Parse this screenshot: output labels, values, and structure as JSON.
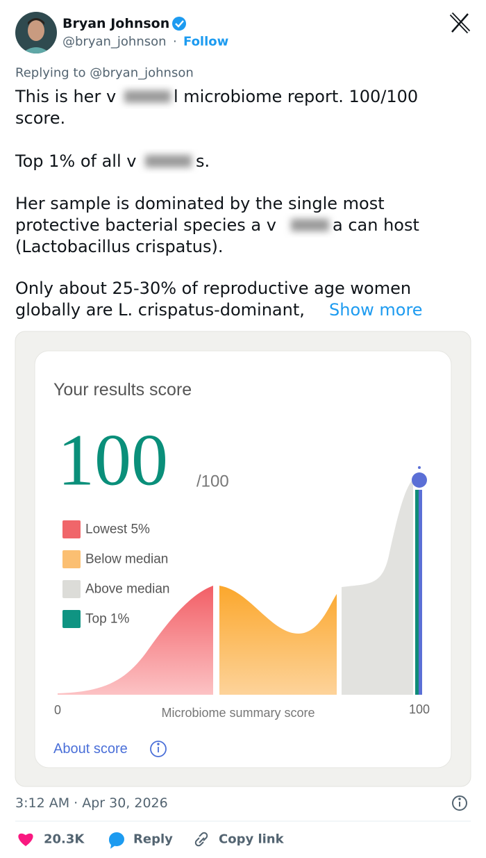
{
  "author": {
    "name": "Bryan Johnson",
    "handle": "@bryan_johnson",
    "follow": "Follow"
  },
  "reply_to": "Replying to @bryan_johnson",
  "body": {
    "lines": [
      [
        "This is her v",
        "l microbiome report. 100/100"
      ],
      [
        "score."
      ],
      [
        "Top 1% of all v",
        "s."
      ],
      [
        "Her sample is dominated by the single most"
      ],
      [
        "protective bacterial species a v",
        "a can host"
      ],
      [
        "(Lactobacillus crispatus)."
      ],
      [
        "Only about 25-30% of reproductive age women"
      ],
      [
        "globally are L. crispatus-dominant,"
      ]
    ],
    "show_more": "Show more"
  },
  "card": {
    "title": "Your results score",
    "score": "100",
    "out_of": "/100",
    "legend": [
      "Lowest 5%",
      "Below median",
      "Above median",
      "Top 1%"
    ],
    "axis": {
      "min": "0",
      "label": "Microbiome summary score",
      "max": "100"
    },
    "about": "About score"
  },
  "footer": {
    "timestamp": "3:12 AM · Apr 30, 2026",
    "likes": "20.3K",
    "reply": "Reply",
    "copy": "Copy link"
  }
}
